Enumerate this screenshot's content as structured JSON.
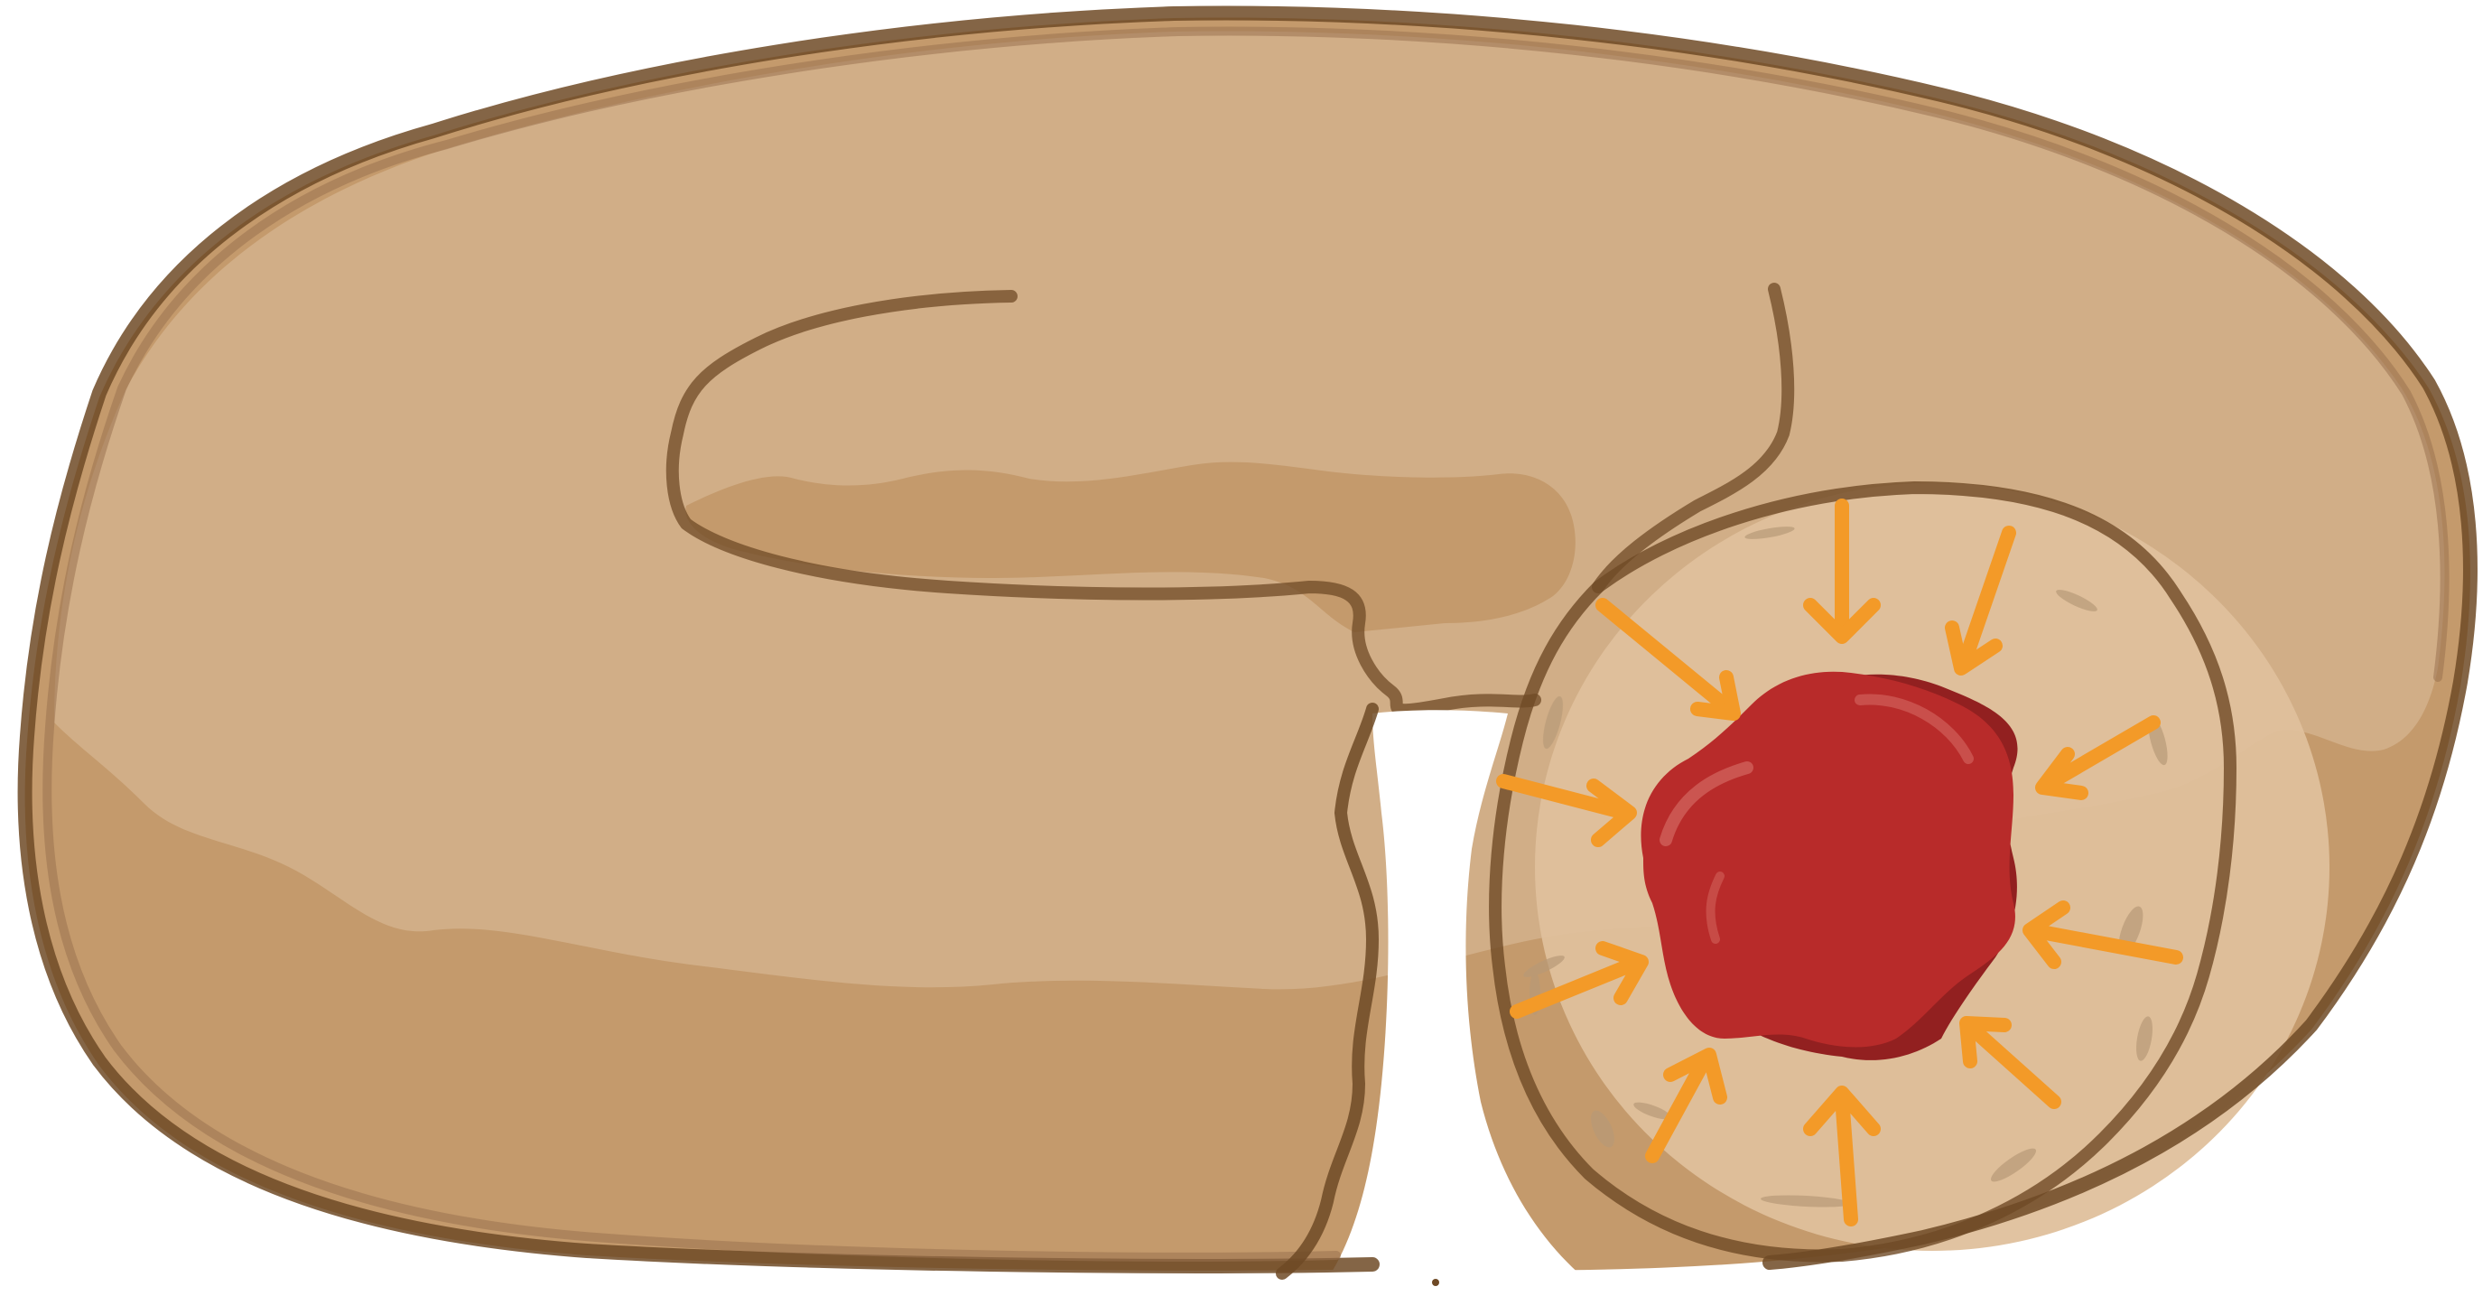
{
  "illustration": {
    "subject": "donut",
    "colors": {
      "background": "#ffffff",
      "dough_top": "#d1ae87",
      "dough_shade": "#c49a6c",
      "outline": "#6f4a26",
      "outline_soft": "#9a7350",
      "cross_section": "#dfc09c",
      "cross_section_speck": "#b89a78",
      "filling": "#b82b2a",
      "filling_dark": "#922020",
      "filling_highlight": "#d0605a",
      "arrow": "#f39a28"
    }
  }
}
